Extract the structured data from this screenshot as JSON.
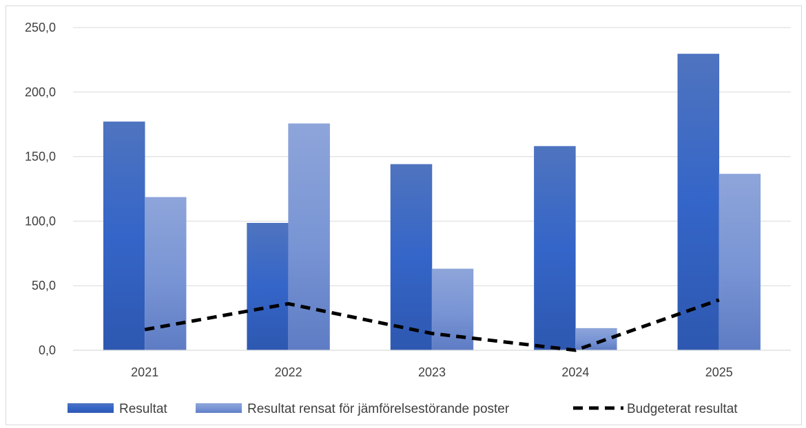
{
  "chart_data": {
    "type": "bar",
    "title": "",
    "xlabel": "",
    "ylabel": "",
    "categories": [
      "2021",
      "2022",
      "2023",
      "2024",
      "2025"
    ],
    "ylim": [
      0,
      250
    ],
    "yticks": [
      "0,0",
      "50,0",
      "100,0",
      "150,0",
      "200,0",
      "250,0"
    ],
    "ytick_values": [
      0,
      50,
      100,
      150,
      200,
      250
    ],
    "grid": true,
    "legend_position": "bottom",
    "series": [
      {
        "name": "Resultat",
        "kind": "bar",
        "color": "#3a66c2",
        "values": [
          177,
          98.5,
          144,
          158,
          229.5
        ]
      },
      {
        "name": "Resultat rensat för jämförelsestörande poster",
        "kind": "bar",
        "color": "#7f9ad6",
        "values": [
          118.5,
          175.5,
          63,
          17,
          136.5
        ]
      },
      {
        "name": "Budgeterat resultat",
        "kind": "line",
        "style": "dashed",
        "color": "#000000",
        "values": [
          16,
          36,
          13,
          0,
          39
        ]
      }
    ]
  }
}
